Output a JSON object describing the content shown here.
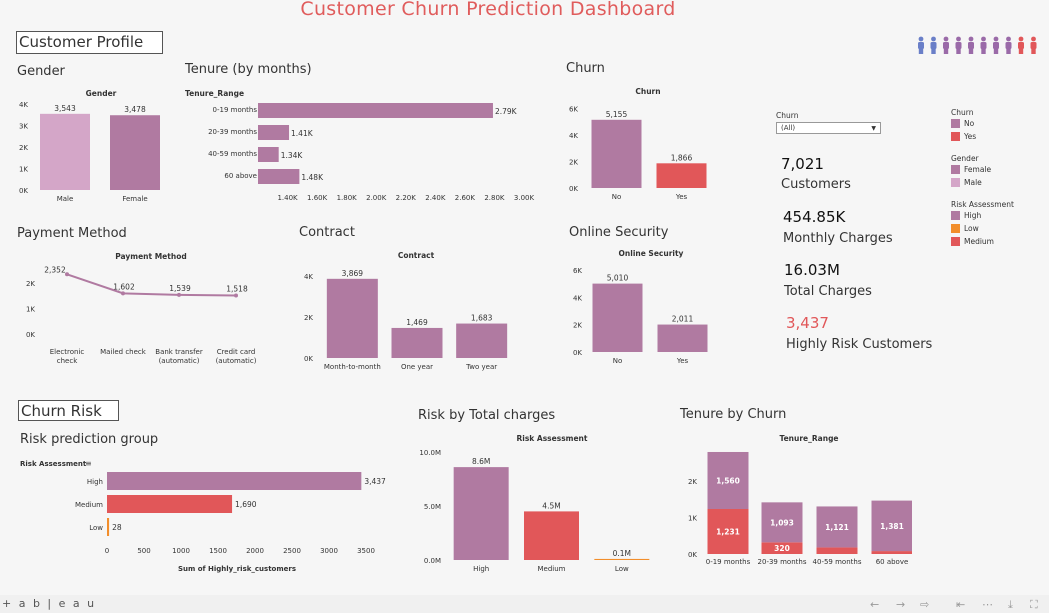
{
  "title": "Customer Churn Prediction Dashboard",
  "sections": {
    "profile": "Customer Profile",
    "risk": "Churn Risk"
  },
  "colors": {
    "purple": "#b07aa1",
    "light_purple": "#d4a6c8",
    "red": "#e15759",
    "orange": "#f28e2b"
  },
  "people_icons": [
    "person-icon",
    "person-icon",
    "person-icon",
    "person-icon",
    "person-icon",
    "person-icon",
    "person-icon",
    "person-icon",
    "walking-person-icon",
    "walking-person-icon"
  ],
  "gender": {
    "panel_title": "Gender",
    "chart_data": {
      "type": "bar",
      "title": "Gender",
      "categories": [
        "Male",
        "Female"
      ],
      "values": [
        3543,
        3478
      ],
      "value_labels": [
        "3,543",
        "3,478"
      ],
      "ylim": [
        0,
        4000
      ],
      "yticks": [
        "4K",
        "3K",
        "2K",
        "1K",
        "0K"
      ]
    }
  },
  "tenure": {
    "panel_title": "Tenure (by months)",
    "chart_data": {
      "type": "bar",
      "orientation": "horizontal",
      "header": "Tenure_Range",
      "categories": [
        "0-19 months",
        "20-39 months",
        "40-59 months",
        "60 above"
      ],
      "values": [
        2790,
        1410,
        1340,
        1480
      ],
      "value_labels": [
        "2.79K",
        "1.41K",
        "1.34K",
        "1.48K"
      ],
      "xlim": [
        1200,
        3000
      ],
      "xticks": [
        "1.40K",
        "1.60K",
        "1.80K",
        "2.00K",
        "2.20K",
        "2.40K",
        "2.60K",
        "2.80K",
        "3.00K"
      ]
    }
  },
  "churn": {
    "panel_title": "Churn",
    "chart_data": {
      "type": "bar",
      "title": "Churn",
      "categories": [
        "No",
        "Yes"
      ],
      "values": [
        5155,
        1866
      ],
      "value_labels": [
        "5,155",
        "1,866"
      ],
      "ylim": [
        0,
        6500
      ],
      "yticks": [
        "6K",
        "4K",
        "2K",
        "0K"
      ]
    }
  },
  "payment": {
    "panel_title": "Payment Method",
    "chart_data": {
      "type": "line",
      "title": "Payment Method",
      "categories": [
        "Electronic check",
        "Mailed check",
        "Bank transfer (automatic)",
        "Credit card (automatic)"
      ],
      "values": [
        2352,
        1602,
        1539,
        1518
      ],
      "value_labels": [
        "2,352",
        "1,602",
        "1,539",
        "1,518"
      ],
      "ylim": [
        0,
        2600
      ],
      "yticks": [
        "2K",
        "1K",
        "0K"
      ]
    }
  },
  "contract": {
    "panel_title": "Contract",
    "chart_data": {
      "type": "bar",
      "title": "Contract",
      "categories": [
        "Month-to-month",
        "One year",
        "Two year"
      ],
      "values": [
        3869,
        1469,
        1683
      ],
      "value_labels": [
        "3,869",
        "1,469",
        "1,683"
      ],
      "ylim": [
        0,
        4300
      ],
      "yticks": [
        "4K",
        "2K",
        "0K"
      ]
    }
  },
  "security": {
    "panel_title": "Online Security",
    "chart_data": {
      "type": "bar",
      "title": "Online Security",
      "categories": [
        "No",
        "Yes"
      ],
      "values": [
        5010,
        2011
      ],
      "value_labels": [
        "5,010",
        "2,011"
      ],
      "ylim": [
        0,
        6300
      ],
      "yticks": [
        "6K",
        "4K",
        "2K",
        "0K"
      ]
    }
  },
  "kpis": [
    {
      "value": "7,021",
      "label": "Customers"
    },
    {
      "value": "454.85K",
      "label": "Monthly Charges"
    },
    {
      "value": "16.03M",
      "label": "Total Charges"
    },
    {
      "value": "3,437",
      "label": "Highly Risk Customers"
    }
  ],
  "filter": {
    "label": "Churn",
    "value": "(All)"
  },
  "legends": {
    "churn": {
      "title": "Churn",
      "items": [
        {
          "label": "No",
          "color": "#b07aa1"
        },
        {
          "label": "Yes",
          "color": "#e15759"
        }
      ]
    },
    "gender": {
      "title": "Gender",
      "items": [
        {
          "label": "Female",
          "color": "#b07aa1"
        },
        {
          "label": "Male",
          "color": "#d4a6c8"
        }
      ]
    },
    "risk": {
      "title": "Risk Assessment",
      "items": [
        {
          "label": "High",
          "color": "#b07aa1"
        },
        {
          "label": "Low",
          "color": "#f28e2b"
        },
        {
          "label": "Medium",
          "color": "#e15759"
        }
      ]
    }
  },
  "risk_group": {
    "panel_title": "Risk prediction group",
    "chart_data": {
      "type": "bar",
      "orientation": "horizontal",
      "header": "Risk Assessment",
      "categories": [
        "High",
        "Medium",
        "Low"
      ],
      "values": [
        3437,
        1690,
        28
      ],
      "value_labels": [
        "3,437",
        "1,690",
        "28"
      ],
      "xlim": [
        0,
        3500
      ],
      "xticks": [
        "0",
        "500",
        "1000",
        "1500",
        "2000",
        "2500",
        "3000",
        "3500"
      ],
      "xlabel": "Sum of Highly_risk_customers"
    }
  },
  "risk_charges": {
    "panel_title": "Risk by Total charges",
    "chart_data": {
      "type": "bar",
      "title": "Risk Assessment",
      "categories": [
        "High",
        "Medium",
        "Low"
      ],
      "values": [
        8.6,
        4.5,
        0.1
      ],
      "value_labels": [
        "8.6M",
        "4.5M",
        "0.1M"
      ],
      "ylim": [
        0,
        10
      ],
      "yticks": [
        "10.0M",
        "5.0M",
        "0.0M"
      ]
    }
  },
  "tenure_churn": {
    "panel_title": "Tenure by Churn",
    "chart_data": {
      "type": "bar",
      "stacked": true,
      "title": "Tenure_Range",
      "categories": [
        "0-19 months",
        "20-39 months",
        "40-59 months",
        "60 above"
      ],
      "series": [
        {
          "name": "Yes",
          "values": [
            1231,
            320,
            180,
            80
          ],
          "value_labels": [
            "1,231",
            "320",
            "",
            ""
          ]
        },
        {
          "name": "No",
          "values": [
            1560,
            1093,
            1121,
            1381
          ],
          "value_labels": [
            "1,560",
            "1,093",
            "1,121",
            "1,381"
          ]
        }
      ],
      "ylim": [
        0,
        2900
      ],
      "yticks": [
        "2K",
        "1K",
        "0K"
      ]
    }
  },
  "footer": {
    "logo": "+ a b | e a u"
  }
}
